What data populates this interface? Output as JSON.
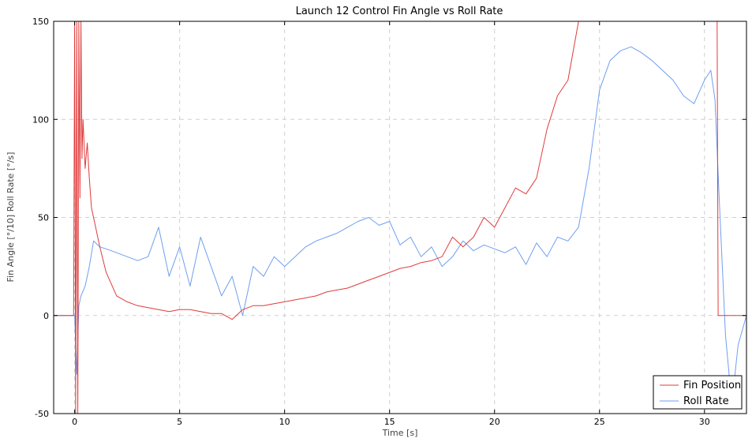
{
  "chart_data": {
    "type": "line",
    "title": "Launch 12 Control Fin Angle vs Roll Rate",
    "xlabel": "Time [s]",
    "ylabel": "Fin Angle [°/10] Roll Rate [°/s]",
    "xlim": [
      -1,
      32
    ],
    "ylim": [
      -50,
      150
    ],
    "xticks": [
      0,
      5,
      10,
      15,
      20,
      25,
      30
    ],
    "yticks": [
      -50,
      0,
      50,
      100,
      150
    ],
    "grid": true,
    "legend_position": "bottom-right",
    "series": [
      {
        "name": "Fin Position",
        "color": "#e03b3b",
        "x": [
          -1,
          -0.05,
          0.0,
          0.05,
          0.1,
          0.15,
          0.2,
          0.25,
          0.3,
          0.35,
          0.4,
          0.5,
          0.6,
          0.7,
          0.8,
          1.0,
          1.2,
          1.5,
          2.0,
          2.5,
          3.0,
          3.5,
          4.0,
          4.5,
          5.0,
          5.5,
          6.0,
          6.5,
          7.0,
          7.5,
          8.0,
          8.5,
          9.0,
          9.5,
          10.0,
          10.5,
          11.0,
          11.5,
          12.0,
          12.5,
          13.0,
          13.5,
          14.0,
          14.5,
          15.0,
          15.5,
          16.0,
          16.5,
          17.0,
          17.5,
          18.0,
          18.5,
          19.0,
          19.5,
          20.0,
          20.5,
          21.0,
          21.5,
          22.0,
          22.5,
          23.0,
          23.5,
          24.0,
          24.5,
          25.0,
          26.0,
          27.0,
          28.0,
          29.0,
          30.0,
          30.6,
          30.65,
          31.0,
          31.5,
          32.0
        ],
        "values": [
          0,
          0,
          150,
          -50,
          150,
          -50,
          150,
          60,
          150,
          80,
          100,
          75,
          88,
          70,
          55,
          45,
          35,
          22,
          10,
          7,
          5,
          4,
          3,
          2,
          3,
          3,
          2,
          1,
          1,
          -2,
          3,
          5,
          5,
          6,
          7,
          8,
          9,
          10,
          12,
          13,
          14,
          16,
          18,
          20,
          22,
          24,
          25,
          27,
          28,
          30,
          40,
          35,
          40,
          50,
          45,
          55,
          65,
          62,
          70,
          95,
          112,
          120,
          150,
          150,
          150,
          150,
          150,
          150,
          150,
          150,
          150,
          0,
          0,
          0,
          0
        ]
      },
      {
        "name": "Roll Rate",
        "color": "#6f9ff0",
        "x": [
          -1,
          -0.1,
          0.0,
          0.1,
          0.2,
          0.3,
          0.5,
          0.7,
          0.9,
          1.2,
          1.5,
          2.0,
          2.5,
          3.0,
          3.5,
          4.0,
          4.5,
          5.0,
          5.5,
          6.0,
          6.5,
          7.0,
          7.5,
          8.0,
          8.5,
          9.0,
          9.5,
          10.0,
          10.5,
          11.0,
          11.5,
          12.0,
          12.5,
          13.0,
          13.5,
          14.0,
          14.5,
          15.0,
          15.5,
          16.0,
          16.5,
          17.0,
          17.5,
          18.0,
          18.5,
          19.0,
          19.5,
          20.0,
          20.5,
          21.0,
          21.5,
          22.0,
          22.5,
          23.0,
          23.5,
          24.0,
          24.5,
          25.0,
          25.5,
          26.0,
          26.5,
          27.0,
          27.5,
          28.0,
          28.5,
          29.0,
          29.5,
          30.0,
          30.3,
          30.5,
          30.7,
          31.0,
          31.3,
          31.6,
          32.0
        ],
        "values": [
          0,
          0,
          0,
          -30,
          5,
          10,
          15,
          25,
          38,
          35,
          34,
          32,
          30,
          28,
          30,
          45,
          20,
          35,
          15,
          40,
          25,
          10,
          20,
          0,
          25,
          20,
          30,
          25,
          30,
          35,
          38,
          40,
          42,
          45,
          48,
          50,
          46,
          48,
          36,
          40,
          30,
          35,
          25,
          30,
          38,
          33,
          36,
          34,
          32,
          35,
          26,
          37,
          30,
          40,
          38,
          45,
          75,
          115,
          130,
          135,
          137,
          134,
          130,
          125,
          120,
          112,
          108,
          120,
          125,
          110,
          60,
          -10,
          -45,
          -15,
          0
        ]
      }
    ]
  }
}
